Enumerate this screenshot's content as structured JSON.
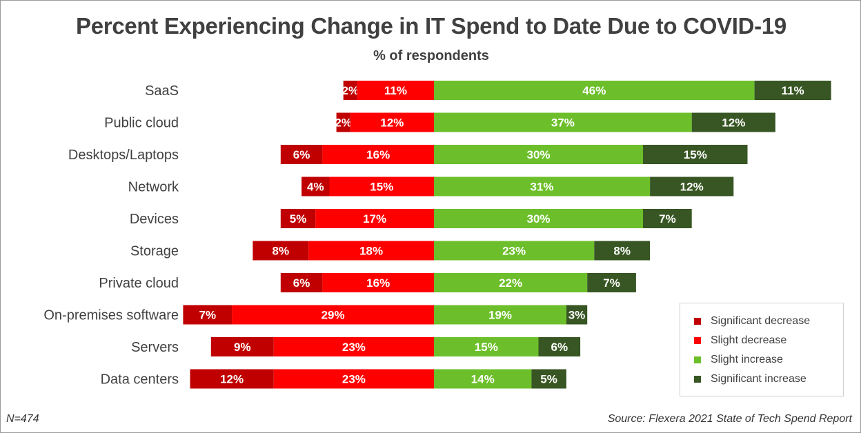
{
  "title": "Percent Experiencing Change in IT Spend to Date Due to COVID-19",
  "subtitle": "% of respondents",
  "footer": {
    "n_label": "N=474",
    "source": "Source: Flexera 2021 State of Tech Spend Report"
  },
  "colors": {
    "significant_decrease": "#c00000",
    "slight_decrease": "#ff0000",
    "slight_increase": "#6cbf2a",
    "significant_increase": "#375623"
  },
  "chart_data": {
    "type": "bar",
    "orientation": "horizontal",
    "stacked": "diverging",
    "title": "Percent Experiencing Change in IT Spend to Date Due to COVID-19",
    "subtitle": "% of respondents",
    "legend_position": "bottom-right",
    "grid": false,
    "categories": [
      "SaaS",
      "Public cloud",
      "Desktops/Laptops",
      "Network",
      "Devices",
      "Storage",
      "Private cloud",
      "On-premises software",
      "Servers",
      "Data centers"
    ],
    "series": [
      {
        "name": "Significant decrease",
        "key": "significant_decrease",
        "values": [
          2,
          2,
          6,
          4,
          5,
          8,
          6,
          7,
          9,
          12
        ]
      },
      {
        "name": "Slight decrease",
        "key": "slight_decrease",
        "values": [
          11,
          12,
          16,
          15,
          17,
          18,
          16,
          29,
          23,
          23
        ]
      },
      {
        "name": "Slight increase",
        "key": "slight_increase",
        "values": [
          46,
          37,
          30,
          31,
          30,
          23,
          22,
          19,
          15,
          14
        ]
      },
      {
        "name": "Significant increase",
        "key": "significant_increase",
        "values": [
          11,
          12,
          15,
          12,
          7,
          8,
          7,
          3,
          6,
          5
        ]
      }
    ],
    "value_suffix": "%"
  }
}
